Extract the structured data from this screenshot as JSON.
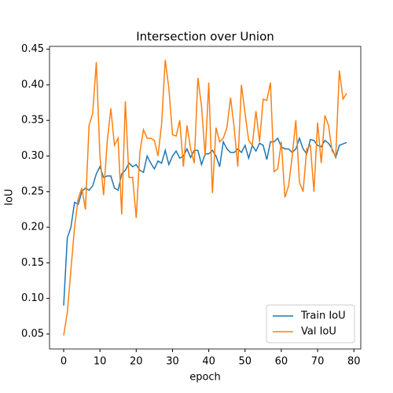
{
  "chart_data": {
    "type": "line",
    "title": "Intersection over Union",
    "xlabel": "epoch",
    "ylabel": "IoU",
    "x": [
      0,
      1,
      2,
      3,
      4,
      5,
      6,
      7,
      8,
      9,
      10,
      11,
      12,
      13,
      14,
      15,
      16,
      17,
      18,
      19,
      20,
      21,
      22,
      23,
      24,
      25,
      26,
      27,
      28,
      29,
      30,
      31,
      32,
      33,
      34,
      35,
      36,
      37,
      38,
      39,
      40,
      41,
      42,
      43,
      44,
      45,
      46,
      47,
      48,
      49,
      50,
      51,
      52,
      53,
      54,
      55,
      56,
      57,
      58,
      59,
      60,
      61,
      62,
      63,
      64,
      65,
      66,
      67,
      68,
      69,
      70,
      71,
      72,
      73,
      74,
      75,
      76,
      77,
      78
    ],
    "series": [
      {
        "name": "Train IoU",
        "color": "#1f77b4",
        "values": [
          0.09,
          0.185,
          0.2,
          0.235,
          0.232,
          0.25,
          0.255,
          0.252,
          0.258,
          0.275,
          0.285,
          0.27,
          0.272,
          0.272,
          0.255,
          0.252,
          0.275,
          0.28,
          0.29,
          0.285,
          0.288,
          0.28,
          0.277,
          0.3,
          0.29,
          0.282,
          0.293,
          0.29,
          0.308,
          0.288,
          0.3,
          0.307,
          0.297,
          0.3,
          0.31,
          0.298,
          0.308,
          0.308,
          0.288,
          0.303,
          0.303,
          0.308,
          0.3,
          0.285,
          0.32,
          0.31,
          0.305,
          0.305,
          0.31,
          0.305,
          0.315,
          0.297,
          0.315,
          0.307,
          0.318,
          0.315,
          0.295,
          0.32,
          0.32,
          0.325,
          0.313,
          0.31,
          0.31,
          0.305,
          0.31,
          0.325,
          0.31,
          0.303,
          0.323,
          0.322,
          0.315,
          0.313,
          0.322,
          0.318,
          0.31,
          0.298,
          0.315,
          0.317,
          0.319
        ]
      },
      {
        "name": "Val IoU",
        "color": "#ff7f0e",
        "values": [
          0.048,
          0.08,
          0.14,
          0.2,
          0.24,
          0.255,
          0.225,
          0.343,
          0.36,
          0.432,
          0.3,
          0.245,
          0.32,
          0.367,
          0.315,
          0.325,
          0.218,
          0.377,
          0.27,
          0.27,
          0.213,
          0.305,
          0.337,
          0.325,
          0.325,
          0.322,
          0.3,
          0.345,
          0.435,
          0.395,
          0.33,
          0.328,
          0.35,
          0.285,
          0.343,
          0.31,
          0.29,
          0.41,
          0.37,
          0.3,
          0.403,
          0.248,
          0.34,
          0.32,
          0.325,
          0.34,
          0.382,
          0.34,
          0.285,
          0.4,
          0.36,
          0.322,
          0.315,
          0.363,
          0.32,
          0.38,
          0.378,
          0.403,
          0.278,
          0.282,
          0.32,
          0.242,
          0.258,
          0.3,
          0.35,
          0.263,
          0.25,
          0.31,
          0.315,
          0.25,
          0.347,
          0.29,
          0.357,
          0.343,
          0.307,
          0.3,
          0.42,
          0.38,
          0.388
        ]
      }
    ],
    "xlim": [
      -3.9,
      81.9
    ],
    "xticks": [
      0,
      10,
      20,
      30,
      40,
      50,
      60,
      70,
      80
    ],
    "ylim": [
      0.029,
      0.454
    ],
    "yticks": [
      0.05,
      {
        "value": 0.1,
        "label": "0.10"
      },
      0.15,
      {
        "value": 0.2,
        "label": "0.20"
      },
      0.25,
      {
        "value": 0.3,
        "label": "0.30"
      },
      0.35,
      {
        "value": 0.4,
        "label": "0.40"
      },
      0.45
    ],
    "legend": "lower right"
  }
}
